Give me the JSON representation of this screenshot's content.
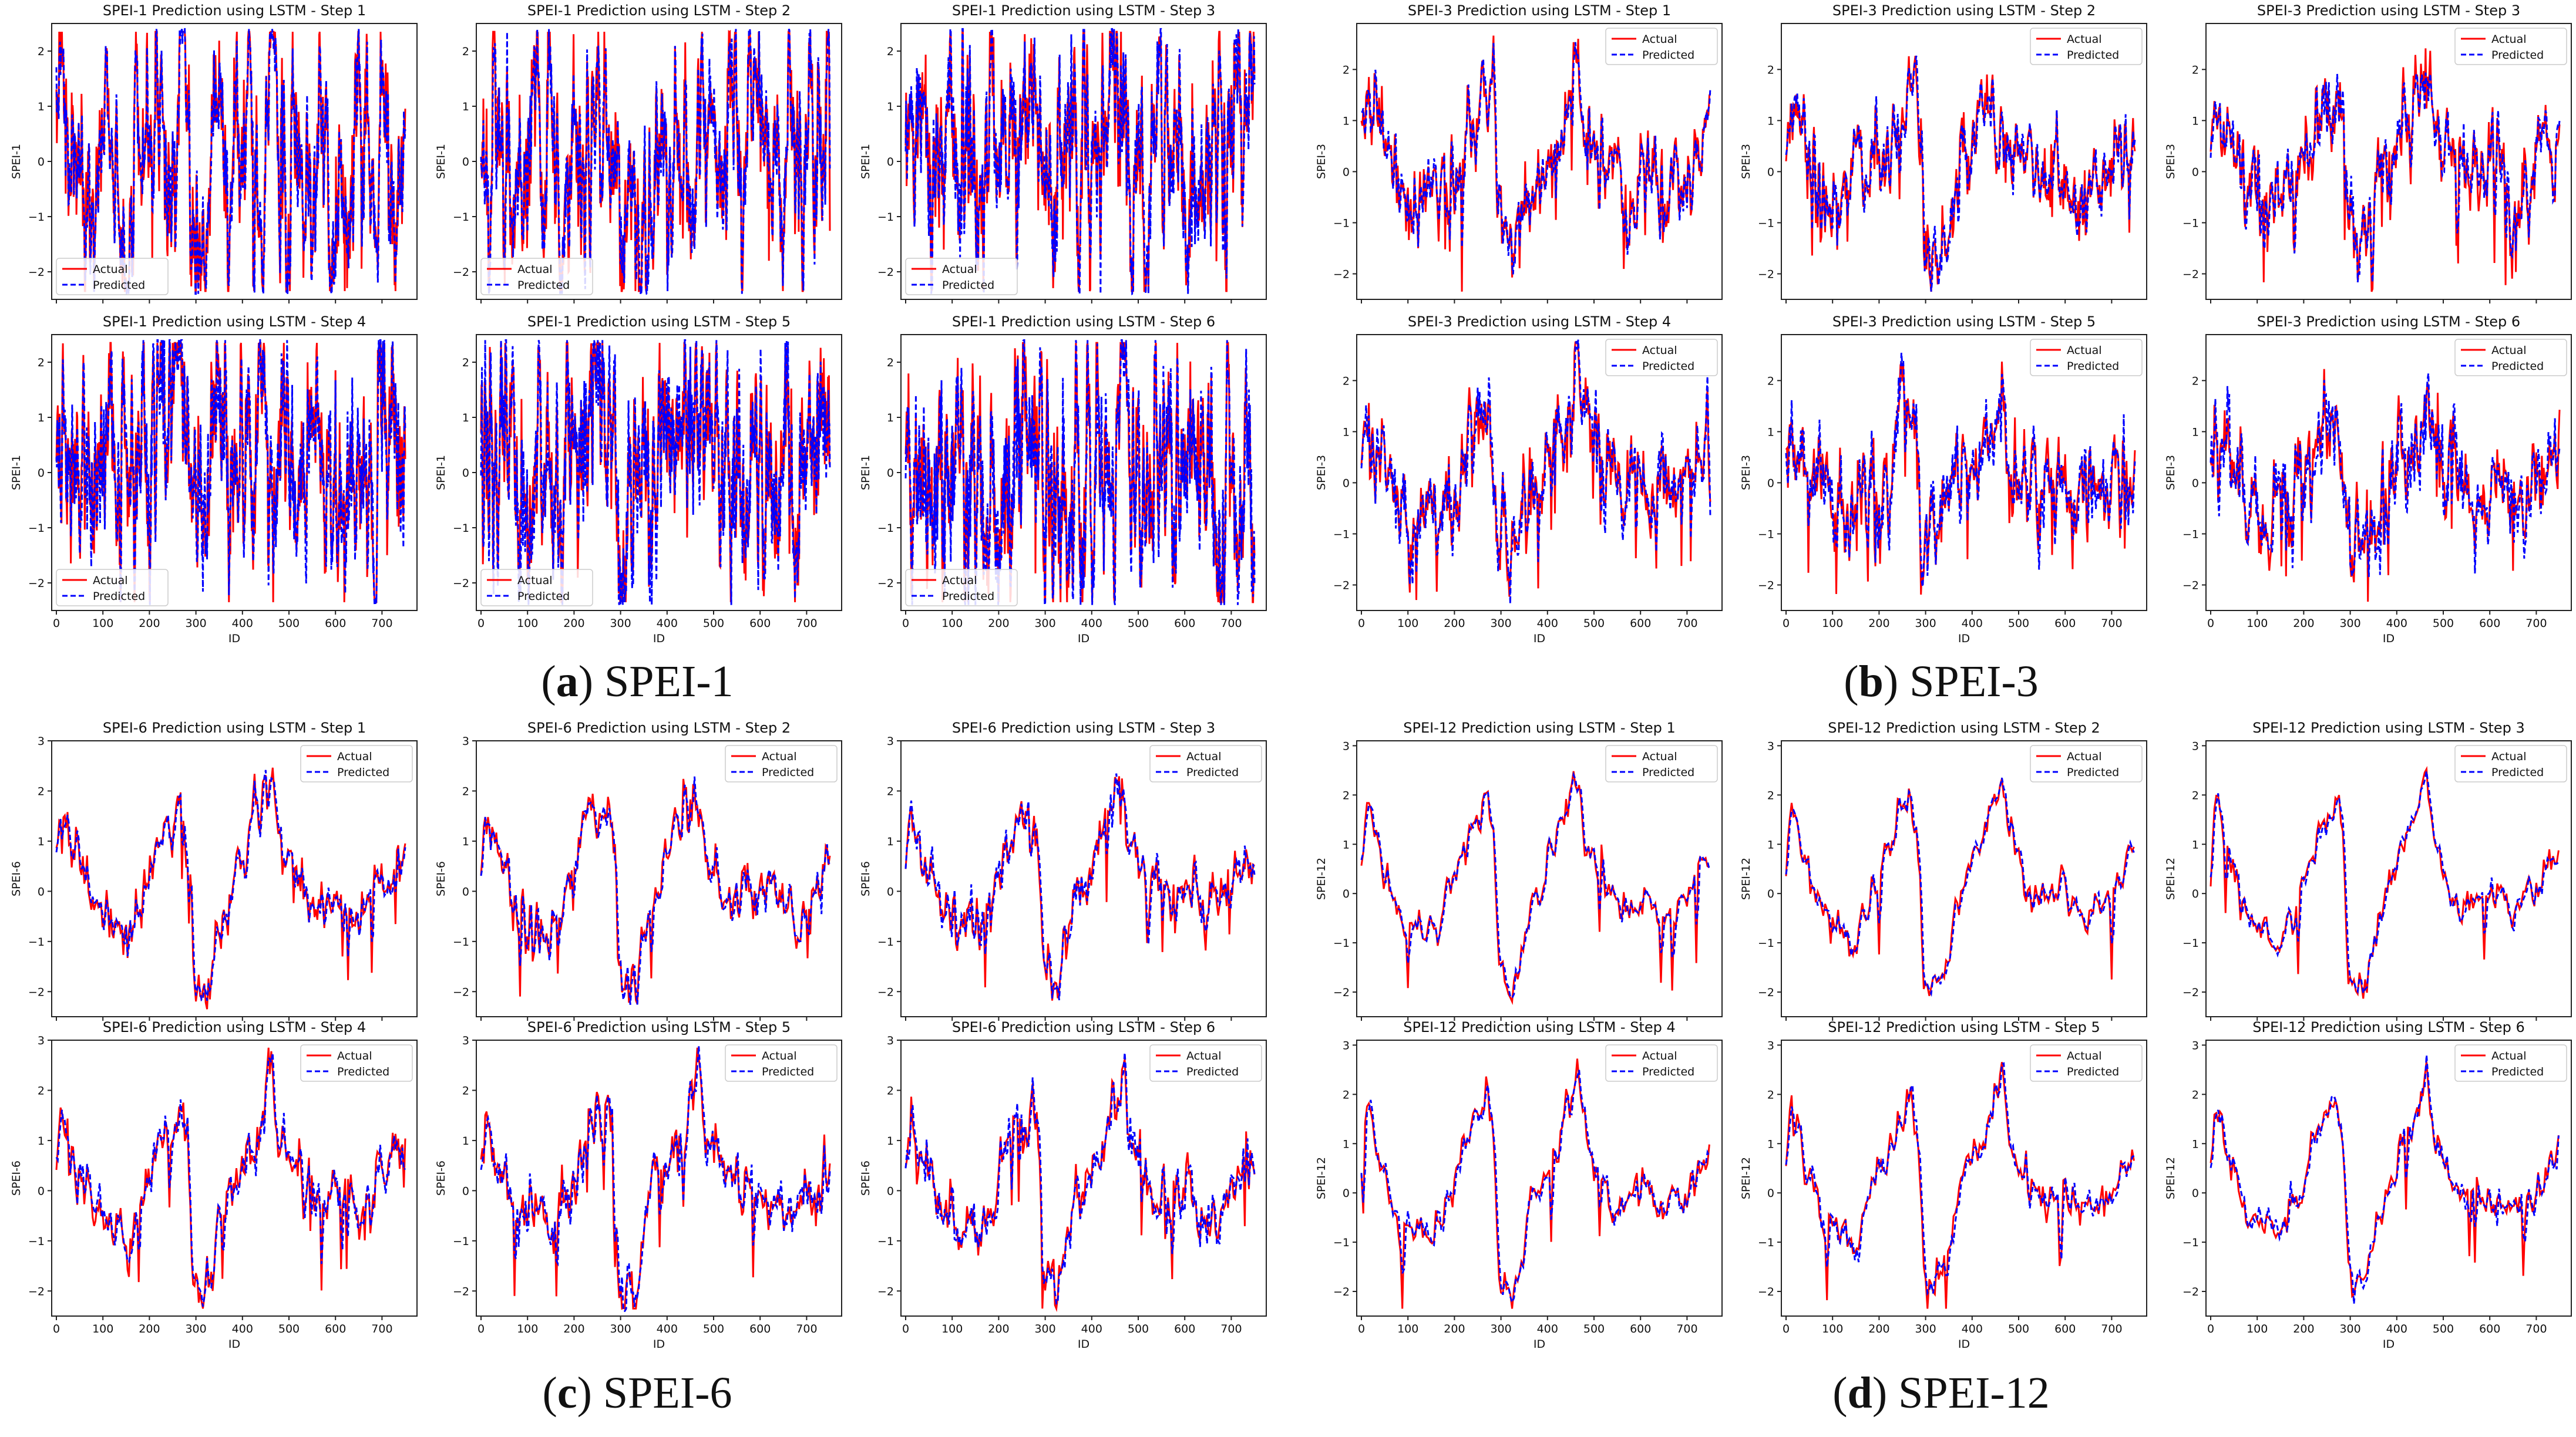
{
  "figure": {
    "model": "LSTM",
    "panels": [
      {
        "letter": "a",
        "label": "SPEI-1",
        "index": "SPEI-1"
      },
      {
        "letter": "b",
        "label": "SPEI-3",
        "index": "SPEI-3"
      },
      {
        "letter": "c",
        "label": "SPEI-6",
        "index": "SPEI-6"
      },
      {
        "letter": "d",
        "label": "SPEI-12",
        "index": "SPEI-12"
      }
    ],
    "legend": {
      "actual": "Actual",
      "predicted": "Predicted"
    },
    "colors": {
      "actual": "#ff0000",
      "predicted": "#0000ff"
    }
  },
  "chart_data": [
    {
      "panel": "a",
      "type": "line",
      "title": "SPEI-1 Prediction using LSTM - Step 1",
      "xlabel": "ID",
      "ylabel": "SPEI-1",
      "xlim": [
        0,
        750
      ],
      "ylim": [
        -2.5,
        2.5
      ],
      "x_ticks": [
        0,
        100,
        200,
        300,
        400,
        500,
        600,
        700
      ],
      "y_ticks": [
        -2,
        -1,
        0,
        1,
        2
      ],
      "series": [
        {
          "name": "Actual",
          "style": "solid",
          "color": "#ff0000"
        },
        {
          "name": "Predicted",
          "style": "dashed",
          "color": "#0000ff"
        }
      ]
    },
    {
      "panel": "a",
      "type": "line",
      "title": "SPEI-1 Prediction using LSTM - Step 2",
      "xlabel": "ID",
      "ylabel": "SPEI-1",
      "xlim": [
        0,
        750
      ],
      "ylim": [
        -2.5,
        2.5
      ],
      "x_ticks": [
        0,
        100,
        200,
        300,
        400,
        500,
        600,
        700
      ],
      "y_ticks": [
        -2,
        -1,
        0,
        1,
        2
      ],
      "series": [
        {
          "name": "Actual",
          "style": "solid",
          "color": "#ff0000"
        },
        {
          "name": "Predicted",
          "style": "dashed",
          "color": "#0000ff"
        }
      ]
    },
    {
      "panel": "a",
      "type": "line",
      "title": "SPEI-1 Prediction using LSTM - Step 3",
      "xlabel": "ID",
      "ylabel": "SPEI-1",
      "xlim": [
        0,
        750
      ],
      "ylim": [
        -2.5,
        2.5
      ],
      "x_ticks": [
        0,
        100,
        200,
        300,
        400,
        500,
        600,
        700
      ],
      "y_ticks": [
        -2,
        -1,
        0,
        1,
        2
      ],
      "series": [
        {
          "name": "Actual",
          "style": "solid",
          "color": "#ff0000"
        },
        {
          "name": "Predicted",
          "style": "dashed",
          "color": "#0000ff"
        }
      ]
    },
    {
      "panel": "a",
      "type": "line",
      "title": "SPEI-1 Prediction using LSTM - Step 4",
      "xlabel": "ID",
      "ylabel": "SPEI-1",
      "xlim": [
        0,
        750
      ],
      "ylim": [
        -2.5,
        2.5
      ],
      "x_ticks": [
        0,
        100,
        200,
        300,
        400,
        500,
        600,
        700
      ],
      "y_ticks": [
        -2,
        -1,
        0,
        1,
        2
      ],
      "series": [
        {
          "name": "Actual",
          "style": "solid",
          "color": "#ff0000"
        },
        {
          "name": "Predicted",
          "style": "dashed",
          "color": "#0000ff"
        }
      ]
    },
    {
      "panel": "a",
      "type": "line",
      "title": "SPEI-1 Prediction using LSTM - Step 5",
      "xlabel": "ID",
      "ylabel": "SPEI-1",
      "xlim": [
        0,
        750
      ],
      "ylim": [
        -2.5,
        2.5
      ],
      "x_ticks": [
        0,
        100,
        200,
        300,
        400,
        500,
        600,
        700
      ],
      "y_ticks": [
        -2,
        -1,
        0,
        1,
        2
      ],
      "series": [
        {
          "name": "Actual",
          "style": "solid",
          "color": "#ff0000"
        },
        {
          "name": "Predicted",
          "style": "dashed",
          "color": "#0000ff"
        }
      ]
    },
    {
      "panel": "a",
      "type": "line",
      "title": "SPEI-1 Prediction using LSTM - Step 6",
      "xlabel": "ID",
      "ylabel": "SPEI-1",
      "xlim": [
        0,
        750
      ],
      "ylim": [
        -2.5,
        2.5
      ],
      "x_ticks": [
        0,
        100,
        200,
        300,
        400,
        500,
        600,
        700
      ],
      "y_ticks": [
        -2,
        -1,
        0,
        1,
        2
      ],
      "series": [
        {
          "name": "Actual",
          "style": "solid",
          "color": "#ff0000"
        },
        {
          "name": "Predicted",
          "style": "dashed",
          "color": "#0000ff"
        }
      ]
    },
    {
      "panel": "b",
      "type": "line",
      "title": "SPEI-3 Prediction using LSTM - Step 1",
      "xlabel": "ID",
      "ylabel": "SPEI-3",
      "xlim": [
        0,
        750
      ],
      "ylim": [
        -2.5,
        2.9
      ],
      "x_ticks": [
        0,
        100,
        200,
        300,
        400,
        500,
        600,
        700
      ],
      "y_ticks": [
        -2,
        -1,
        0,
        1,
        2
      ],
      "series": [
        {
          "name": "Actual",
          "style": "solid",
          "color": "#ff0000"
        },
        {
          "name": "Predicted",
          "style": "dashed",
          "color": "#0000ff"
        }
      ]
    },
    {
      "panel": "b",
      "type": "line",
      "title": "SPEI-3 Prediction using LSTM - Step 2",
      "xlabel": "ID",
      "ylabel": "SPEI-3",
      "xlim": [
        0,
        750
      ],
      "ylim": [
        -2.5,
        2.9
      ],
      "x_ticks": [
        0,
        100,
        200,
        300,
        400,
        500,
        600,
        700
      ],
      "y_ticks": [
        -2,
        -1,
        0,
        1,
        2
      ],
      "series": [
        {
          "name": "Actual",
          "style": "solid",
          "color": "#ff0000"
        },
        {
          "name": "Predicted",
          "style": "dashed",
          "color": "#0000ff"
        }
      ]
    },
    {
      "panel": "b",
      "type": "line",
      "title": "SPEI-3 Prediction using LSTM - Step 3",
      "xlabel": "ID",
      "ylabel": "SPEI-3",
      "xlim": [
        0,
        750
      ],
      "ylim": [
        -2.5,
        2.9
      ],
      "x_ticks": [
        0,
        100,
        200,
        300,
        400,
        500,
        600,
        700
      ],
      "y_ticks": [
        -2,
        -1,
        0,
        1,
        2
      ],
      "series": [
        {
          "name": "Actual",
          "style": "solid",
          "color": "#ff0000"
        },
        {
          "name": "Predicted",
          "style": "dashed",
          "color": "#0000ff"
        }
      ]
    },
    {
      "panel": "b",
      "type": "line",
      "title": "SPEI-3 Prediction using LSTM - Step 4",
      "xlabel": "ID",
      "ylabel": "SPEI-3",
      "xlim": [
        0,
        750
      ],
      "ylim": [
        -2.5,
        2.9
      ],
      "x_ticks": [
        0,
        100,
        200,
        300,
        400,
        500,
        600,
        700
      ],
      "y_ticks": [
        -2,
        -1,
        0,
        1,
        2
      ],
      "series": [
        {
          "name": "Actual",
          "style": "solid",
          "color": "#ff0000"
        },
        {
          "name": "Predicted",
          "style": "dashed",
          "color": "#0000ff"
        }
      ]
    },
    {
      "panel": "b",
      "type": "line",
      "title": "SPEI-3 Prediction using LSTM - Step 5",
      "xlabel": "ID",
      "ylabel": "SPEI-3",
      "xlim": [
        0,
        750
      ],
      "ylim": [
        -2.5,
        2.9
      ],
      "x_ticks": [
        0,
        100,
        200,
        300,
        400,
        500,
        600,
        700
      ],
      "y_ticks": [
        -2,
        -1,
        0,
        1,
        2
      ],
      "series": [
        {
          "name": "Actual",
          "style": "solid",
          "color": "#ff0000"
        },
        {
          "name": "Predicted",
          "style": "dashed",
          "color": "#0000ff"
        }
      ]
    },
    {
      "panel": "b",
      "type": "line",
      "title": "SPEI-3 Prediction using LSTM - Step 6",
      "xlabel": "ID",
      "ylabel": "SPEI-3",
      "xlim": [
        0,
        750
      ],
      "ylim": [
        -2.5,
        2.9
      ],
      "x_ticks": [
        0,
        100,
        200,
        300,
        400,
        500,
        600,
        700
      ],
      "y_ticks": [
        -2,
        -1,
        0,
        1,
        2
      ],
      "series": [
        {
          "name": "Actual",
          "style": "solid",
          "color": "#ff0000"
        },
        {
          "name": "Predicted",
          "style": "dashed",
          "color": "#0000ff"
        }
      ]
    },
    {
      "panel": "c",
      "type": "line",
      "title": "SPEI-6 Prediction using LSTM - Step 1",
      "xlabel": "ID",
      "ylabel": "SPEI-6",
      "xlim": [
        0,
        750
      ],
      "ylim": [
        -2.5,
        3.0
      ],
      "x_ticks": [
        0,
        100,
        200,
        300,
        400,
        500,
        600,
        700
      ],
      "y_ticks": [
        -2,
        -1,
        0,
        1,
        2,
        3
      ],
      "series": [
        {
          "name": "Actual",
          "style": "solid",
          "color": "#ff0000"
        },
        {
          "name": "Predicted",
          "style": "dashed",
          "color": "#0000ff"
        }
      ]
    },
    {
      "panel": "c",
      "type": "line",
      "title": "SPEI-6 Prediction using LSTM - Step 2",
      "xlabel": "ID",
      "ylabel": "SPEI-6",
      "xlim": [
        0,
        750
      ],
      "ylim": [
        -2.5,
        3.0
      ],
      "x_ticks": [
        0,
        100,
        200,
        300,
        400,
        500,
        600,
        700
      ],
      "y_ticks": [
        -2,
        -1,
        0,
        1,
        2,
        3
      ],
      "series": [
        {
          "name": "Actual",
          "style": "solid",
          "color": "#ff0000"
        },
        {
          "name": "Predicted",
          "style": "dashed",
          "color": "#0000ff"
        }
      ]
    },
    {
      "panel": "c",
      "type": "line",
      "title": "SPEI-6 Prediction using LSTM - Step 3",
      "xlabel": "ID",
      "ylabel": "SPEI-6",
      "xlim": [
        0,
        750
      ],
      "ylim": [
        -2.5,
        3.0
      ],
      "x_ticks": [
        0,
        100,
        200,
        300,
        400,
        500,
        600,
        700
      ],
      "y_ticks": [
        -2,
        -1,
        0,
        1,
        2,
        3
      ],
      "series": [
        {
          "name": "Actual",
          "style": "solid",
          "color": "#ff0000"
        },
        {
          "name": "Predicted",
          "style": "dashed",
          "color": "#0000ff"
        }
      ]
    },
    {
      "panel": "c",
      "type": "line",
      "title": "SPEI-6 Prediction using LSTM - Step 4",
      "xlabel": "ID",
      "ylabel": "SPEI-6",
      "xlim": [
        0,
        750
      ],
      "ylim": [
        -2.5,
        3.0
      ],
      "x_ticks": [
        0,
        100,
        200,
        300,
        400,
        500,
        600,
        700
      ],
      "y_ticks": [
        -2,
        -1,
        0,
        1,
        2,
        3
      ],
      "series": [
        {
          "name": "Actual",
          "style": "solid",
          "color": "#ff0000"
        },
        {
          "name": "Predicted",
          "style": "dashed",
          "color": "#0000ff"
        }
      ]
    },
    {
      "panel": "c",
      "type": "line",
      "title": "SPEI-6 Prediction using LSTM - Step 5",
      "xlabel": "ID",
      "ylabel": "SPEI-6",
      "xlim": [
        0,
        750
      ],
      "ylim": [
        -2.5,
        3.0
      ],
      "x_ticks": [
        0,
        100,
        200,
        300,
        400,
        500,
        600,
        700
      ],
      "y_ticks": [
        -2,
        -1,
        0,
        1,
        2,
        3
      ],
      "series": [
        {
          "name": "Actual",
          "style": "solid",
          "color": "#ff0000"
        },
        {
          "name": "Predicted",
          "style": "dashed",
          "color": "#0000ff"
        }
      ]
    },
    {
      "panel": "c",
      "type": "line",
      "title": "SPEI-6 Prediction using LSTM - Step 6",
      "xlabel": "ID",
      "ylabel": "SPEI-6",
      "xlim": [
        0,
        750
      ],
      "ylim": [
        -2.5,
        3.0
      ],
      "x_ticks": [
        0,
        100,
        200,
        300,
        400,
        500,
        600,
        700
      ],
      "y_ticks": [
        -2,
        -1,
        0,
        1,
        2,
        3
      ],
      "series": [
        {
          "name": "Actual",
          "style": "solid",
          "color": "#ff0000"
        },
        {
          "name": "Predicted",
          "style": "dashed",
          "color": "#0000ff"
        }
      ]
    },
    {
      "panel": "d",
      "type": "line",
      "title": "SPEI-12 Prediction using LSTM - Step 1",
      "xlabel": "ID",
      "ylabel": "SPEI-12",
      "xlim": [
        0,
        750
      ],
      "ylim": [
        -2.5,
        3.1
      ],
      "x_ticks": [
        0,
        100,
        200,
        300,
        400,
        500,
        600,
        700
      ],
      "y_ticks": [
        -2,
        -1,
        0,
        1,
        2,
        3
      ],
      "series": [
        {
          "name": "Actual",
          "style": "solid",
          "color": "#ff0000"
        },
        {
          "name": "Predicted",
          "style": "dashed",
          "color": "#0000ff"
        }
      ]
    },
    {
      "panel": "d",
      "type": "line",
      "title": "SPEI-12 Prediction using LSTM - Step 2",
      "xlabel": "ID",
      "ylabel": "SPEI-12",
      "xlim": [
        0,
        750
      ],
      "ylim": [
        -2.5,
        3.1
      ],
      "x_ticks": [
        0,
        100,
        200,
        300,
        400,
        500,
        600,
        700
      ],
      "y_ticks": [
        -2,
        -1,
        0,
        1,
        2,
        3
      ],
      "series": [
        {
          "name": "Actual",
          "style": "solid",
          "color": "#ff0000"
        },
        {
          "name": "Predicted",
          "style": "dashed",
          "color": "#0000ff"
        }
      ]
    },
    {
      "panel": "d",
      "type": "line",
      "title": "SPEI-12 Prediction using LSTM - Step 3",
      "xlabel": "ID",
      "ylabel": "SPEI-12",
      "xlim": [
        0,
        750
      ],
      "ylim": [
        -2.5,
        3.1
      ],
      "x_ticks": [
        0,
        100,
        200,
        300,
        400,
        500,
        600,
        700
      ],
      "y_ticks": [
        -2,
        -1,
        0,
        1,
        2,
        3
      ],
      "series": [
        {
          "name": "Actual",
          "style": "solid",
          "color": "#ff0000"
        },
        {
          "name": "Predicted",
          "style": "dashed",
          "color": "#0000ff"
        }
      ]
    },
    {
      "panel": "d",
      "type": "line",
      "title": "SPEI-12 Prediction using LSTM - Step 4",
      "xlabel": "ID",
      "ylabel": "SPEI-12",
      "xlim": [
        0,
        750
      ],
      "ylim": [
        -2.5,
        3.1
      ],
      "x_ticks": [
        0,
        100,
        200,
        300,
        400,
        500,
        600,
        700
      ],
      "y_ticks": [
        -2,
        -1,
        0,
        1,
        2,
        3
      ],
      "series": [
        {
          "name": "Actual",
          "style": "solid",
          "color": "#ff0000"
        },
        {
          "name": "Predicted",
          "style": "dashed",
          "color": "#0000ff"
        }
      ]
    },
    {
      "panel": "d",
      "type": "line",
      "title": "SPEI-12 Prediction using LSTM - Step 5",
      "xlabel": "ID",
      "ylabel": "SPEI-12",
      "xlim": [
        0,
        750
      ],
      "ylim": [
        -2.5,
        3.1
      ],
      "x_ticks": [
        0,
        100,
        200,
        300,
        400,
        500,
        600,
        700
      ],
      "y_ticks": [
        -2,
        -1,
        0,
        1,
        2,
        3
      ],
      "series": [
        {
          "name": "Actual",
          "style": "solid",
          "color": "#ff0000"
        },
        {
          "name": "Predicted",
          "style": "dashed",
          "color": "#0000ff"
        }
      ]
    },
    {
      "panel": "d",
      "type": "line",
      "title": "SPEI-12 Prediction using LSTM - Step 6",
      "xlabel": "ID",
      "ylabel": "SPEI-12",
      "xlim": [
        0,
        750
      ],
      "ylim": [
        -2.5,
        3.1
      ],
      "x_ticks": [
        0,
        100,
        200,
        300,
        400,
        500,
        600,
        700
      ],
      "y_ticks": [
        -2,
        -1,
        0,
        1,
        2,
        3
      ],
      "series": [
        {
          "name": "Actual",
          "style": "solid",
          "color": "#ff0000"
        },
        {
          "name": "Predicted",
          "style": "dashed",
          "color": "#0000ff"
        }
      ]
    }
  ]
}
